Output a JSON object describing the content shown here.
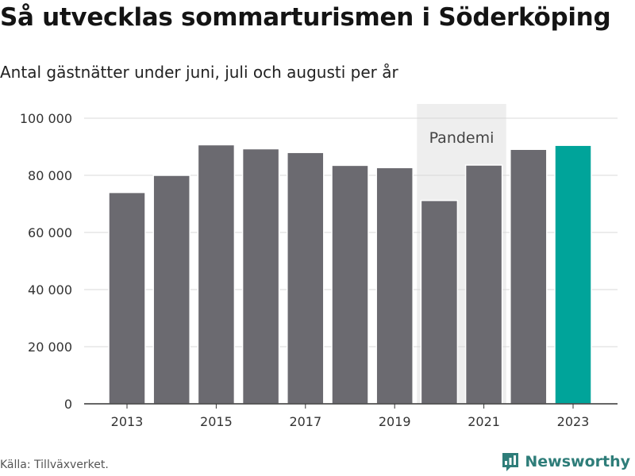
{
  "title": "Så utvecklas sommarturismen i Söderköping",
  "subtitle": "Antal gästnätter under juni, juli och augusti per år",
  "source": "Källa: Tillväxverket.",
  "brand": "Newsworthy",
  "colors": {
    "bar": "#6b6a70",
    "highlight": "#00a49a",
    "band": "#eeeeee",
    "grid": "#d8d8d8",
    "axis": "#333333",
    "brand": "#2e7d79"
  },
  "chart_data": {
    "type": "bar",
    "title": "Så utvecklas sommarturismen i Söderköping",
    "subtitle": "Antal gästnätter under juni, juli och augusti per år",
    "categories": [
      "2013",
      "2014",
      "2015",
      "2016",
      "2017",
      "2018",
      "2019",
      "2020",
      "2021",
      "2022",
      "2023"
    ],
    "values": [
      74000,
      80000,
      90700,
      89300,
      88000,
      83500,
      82700,
      71200,
      83600,
      89100,
      90500
    ],
    "highlight_category": "2023",
    "x_tick_labels": [
      "2013",
      "2015",
      "2017",
      "2019",
      "2021",
      "2023"
    ],
    "y_ticks": [
      0,
      20000,
      40000,
      60000,
      80000,
      100000
    ],
    "y_tick_labels": [
      "0",
      "20 000",
      "40 000",
      "60 000",
      "80 000",
      "100 000"
    ],
    "ylim": [
      0,
      100000
    ],
    "grid": true,
    "legend": "none",
    "annotations": [
      {
        "label": "Pandemi",
        "from": "2020",
        "to": "2021"
      }
    ],
    "xlabel": "",
    "ylabel": ""
  }
}
